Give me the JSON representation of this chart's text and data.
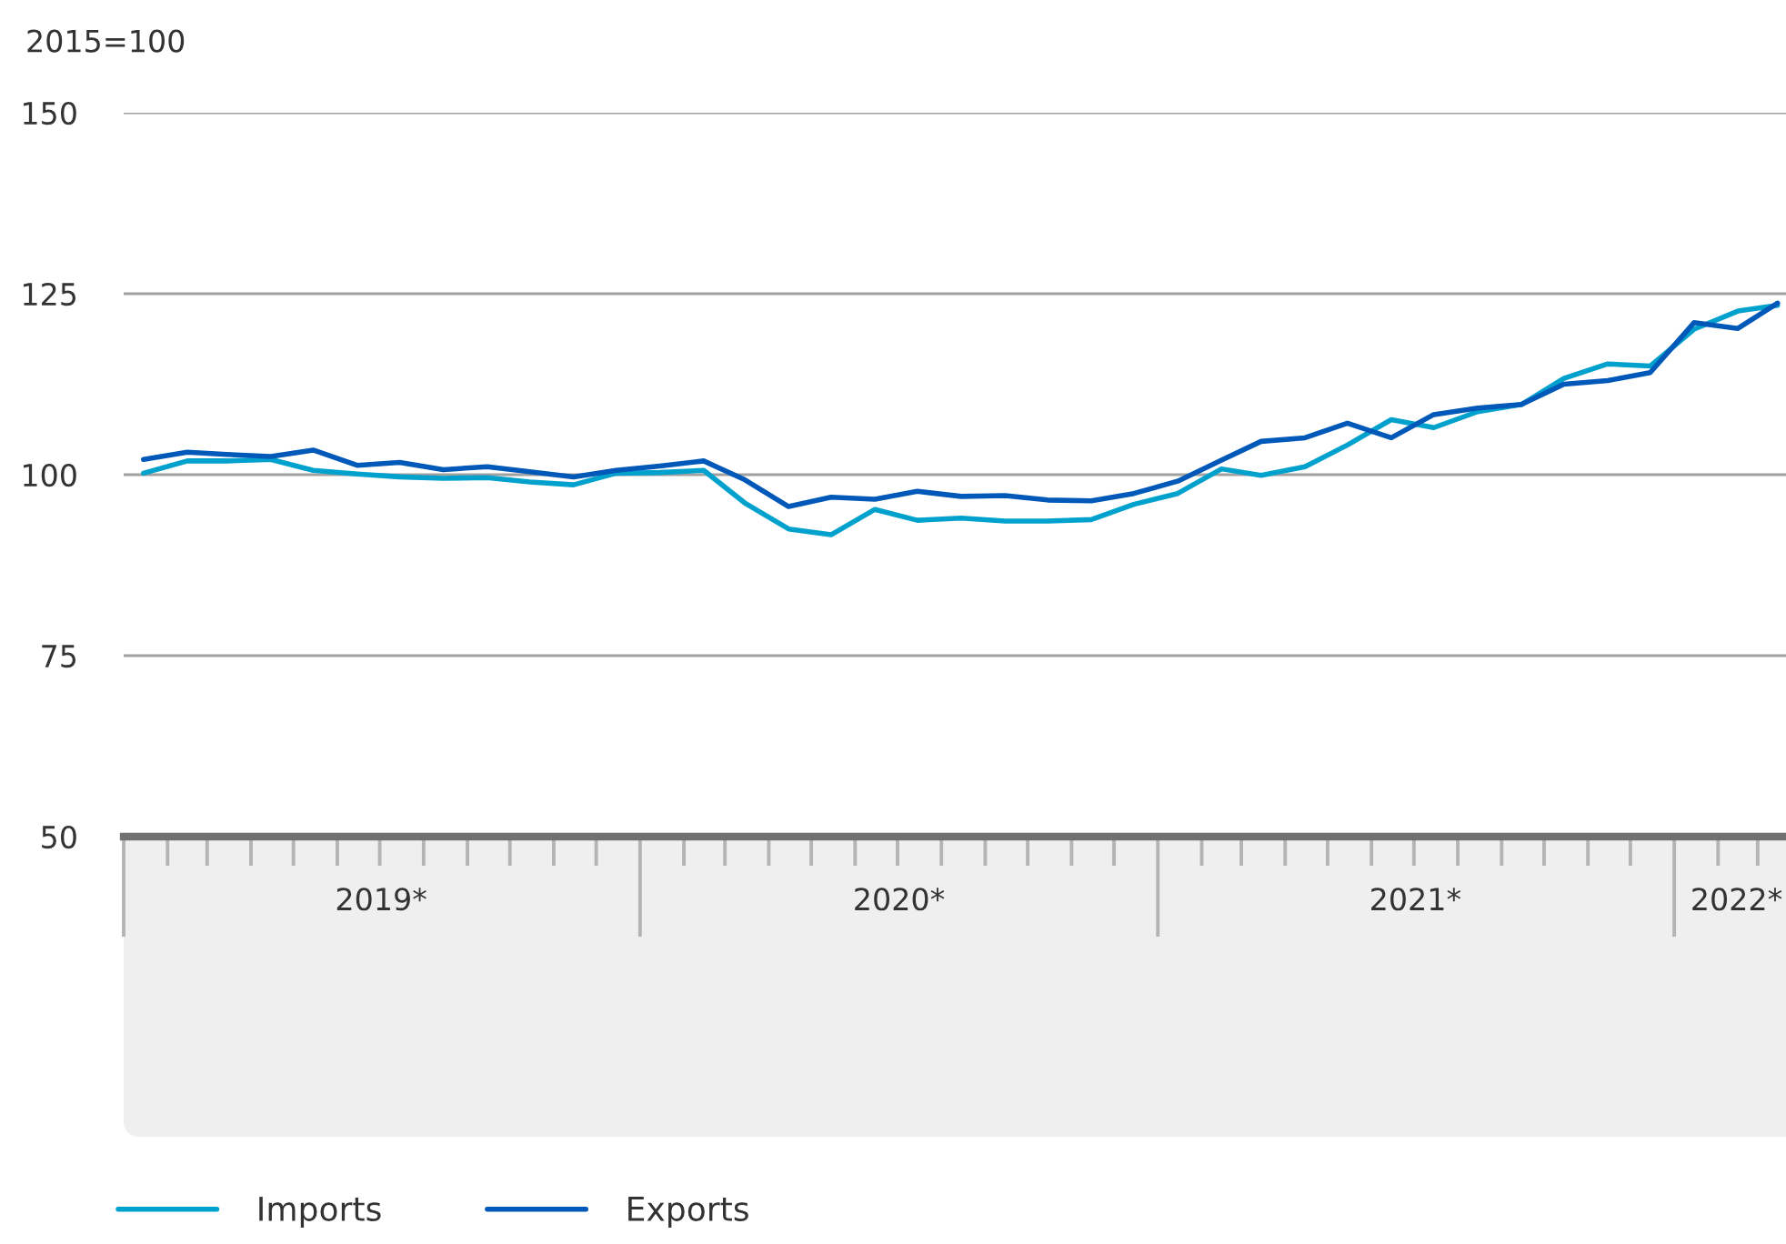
{
  "chart_data": {
    "type": "line",
    "ylabel": "2015=100",
    "x": [
      "2019-01-15",
      "2019-02-15",
      "2019-03-15",
      "2019-04-15",
      "2019-05-15",
      "2019-06-15",
      "2019-07-15",
      "2019-08-15",
      "2019-09-15",
      "2019-10-15",
      "2019-11-15",
      "2019-12-15",
      "2020-01-15",
      "2020-02-15",
      "2020-03-15",
      "2020-04-15",
      "2020-05-15",
      "2020-06-15",
      "2020-07-15",
      "2020-08-15",
      "2020-09-15",
      "2020-10-15",
      "2020-11-15",
      "2020-12-15",
      "2021-01-15",
      "2021-02-15",
      "2021-03-15",
      "2021-04-15",
      "2021-05-15",
      "2021-06-15",
      "2021-07-15",
      "2021-08-15",
      "2021-09-15",
      "2021-10-15",
      "2021-11-15",
      "2021-12-15",
      "2022-01-15",
      "2022-02-15",
      "2022-03-15"
    ],
    "xlim": [
      "2019-01-01",
      "2022-03-21"
    ],
    "xticks": [
      {
        "value": "2019-01-01",
        "label": null
      },
      {
        "value": "2019-02-01",
        "label": null
      },
      {
        "value": "2019-03-01",
        "label": null
      },
      {
        "value": "2019-04-01",
        "label": null
      },
      {
        "value": "2019-05-01",
        "label": null
      },
      {
        "value": "2019-06-01",
        "label": null
      },
      {
        "value": "2019-07-01",
        "label": null
      },
      {
        "value": "2019-07-02",
        "label": "2019*"
      },
      {
        "value": "2019-08-01",
        "label": null
      },
      {
        "value": "2019-09-01",
        "label": null
      },
      {
        "value": "2019-10-01",
        "label": null
      },
      {
        "value": "2019-11-01",
        "label": null
      },
      {
        "value": "2019-12-01",
        "label": null
      },
      {
        "value": "2020-01-01",
        "label": null
      },
      {
        "value": "2020-02-01",
        "label": null
      },
      {
        "value": "2020-03-01",
        "label": null
      },
      {
        "value": "2020-04-01",
        "label": null
      },
      {
        "value": "2020-05-01",
        "label": null
      },
      {
        "value": "2020-06-01",
        "label": null
      },
      {
        "value": "2020-07-01",
        "label": null
      },
      {
        "value": "2020-07-02",
        "label": "2020*"
      },
      {
        "value": "2020-08-01",
        "label": null
      },
      {
        "value": "2020-09-01",
        "label": null
      },
      {
        "value": "2020-10-01",
        "label": null
      },
      {
        "value": "2020-11-01",
        "label": null
      },
      {
        "value": "2020-12-01",
        "label": null
      },
      {
        "value": "2021-01-01",
        "label": null
      },
      {
        "value": "2021-02-01",
        "label": null
      },
      {
        "value": "2021-03-01",
        "label": null
      },
      {
        "value": "2021-04-01",
        "label": null
      },
      {
        "value": "2021-05-01",
        "label": null
      },
      {
        "value": "2021-06-01",
        "label": null
      },
      {
        "value": "2021-07-01",
        "label": null
      },
      {
        "value": "2021-07-02",
        "label": "2021*"
      },
      {
        "value": "2021-08-01",
        "label": null
      },
      {
        "value": "2021-09-01",
        "label": null
      },
      {
        "value": "2021-10-01",
        "label": null
      },
      {
        "value": "2021-11-01",
        "label": null
      },
      {
        "value": "2021-12-01",
        "label": null
      },
      {
        "value": "2022-01-01",
        "label": null
      },
      {
        "value": "2022-02-01",
        "label": null
      },
      {
        "value": "2022-02-14",
        "label": "2022*"
      },
      {
        "value": "2022-03-01",
        "label": null
      }
    ],
    "ylim": [
      50,
      150
    ],
    "yticks": [
      50,
      75,
      100,
      125,
      150
    ],
    "grid": "y",
    "legend": "bottom",
    "series": [
      {
        "name": "Imports",
        "color": "#00a1cd",
        "values": [
          100.2,
          101.9,
          101.9,
          102.1,
          100.6,
          100.1,
          99.7,
          99.5,
          99.6,
          99.0,
          98.6,
          100.2,
          100.3,
          100.6,
          96.1,
          92.5,
          91.7,
          95.2,
          93.7,
          94.0,
          93.6,
          93.6,
          93.8,
          95.9,
          97.4,
          100.8,
          99.9,
          101.1,
          104.1,
          107.6,
          106.5,
          108.7,
          109.7,
          113.3,
          115.3,
          115.0,
          120.1,
          122.6,
          123.4
        ]
      },
      {
        "name": "Exports",
        "color": "#0058b8",
        "values": [
          102.1,
          103.1,
          102.8,
          102.5,
          103.4,
          101.3,
          101.7,
          100.7,
          101.1,
          100.4,
          99.7,
          100.6,
          101.2,
          101.9,
          99.3,
          95.6,
          96.9,
          96.6,
          97.7,
          97.0,
          97.1,
          96.5,
          96.4,
          97.4,
          99.1,
          102.0,
          104.6,
          105.1,
          107.1,
          105.1,
          108.3,
          109.2,
          109.7,
          112.5,
          113.0,
          114.1,
          121.0,
          120.2,
          123.7
        ]
      }
    ]
  }
}
